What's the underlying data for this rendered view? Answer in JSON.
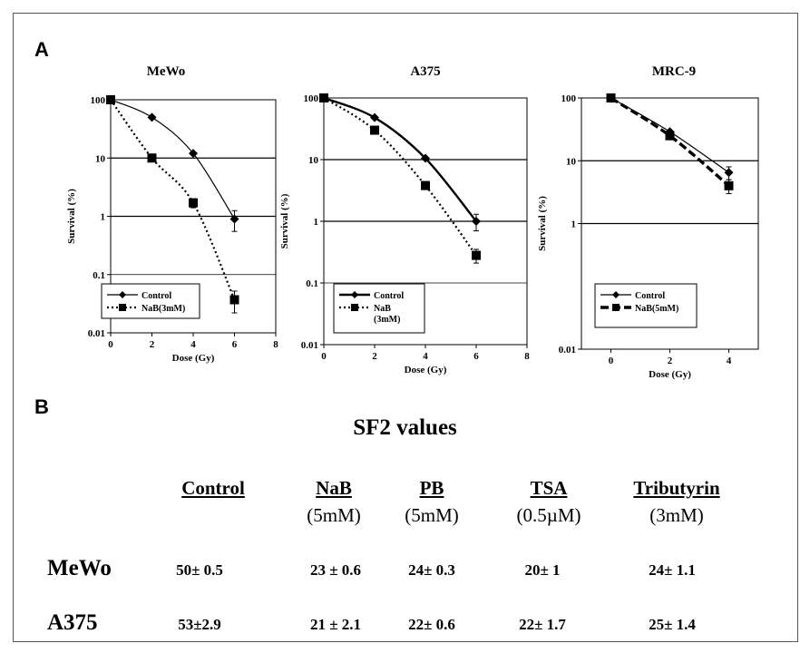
{
  "panel_a_label": "A",
  "panel_b_label": "B",
  "chart_data": [
    {
      "type": "line",
      "title": "MeWo",
      "xlabel": "Dose (Gy)",
      "ylabel": "Survival (%)",
      "xlim": [
        0,
        8
      ],
      "ylim": [
        0.01,
        100
      ],
      "yscale": "log",
      "xticks": [
        "0",
        "2",
        "4",
        "6",
        "8"
      ],
      "yticks": [
        "0.01",
        "0.1",
        "1",
        "10",
        "100"
      ],
      "grid": "horizontal",
      "legend": "bottom-left",
      "series": [
        {
          "name": "Control",
          "style": "solid-thin",
          "marker": "diamond",
          "x": [
            0,
            2,
            4,
            6
          ],
          "y": [
            100,
            50,
            12,
            0.9
          ],
          "err": [
            0,
            0,
            0,
            0.35
          ]
        },
        {
          "name": "NaB(3mM)",
          "style": "dotted",
          "marker": "square",
          "x": [
            0,
            2,
            4,
            6
          ],
          "y": [
            100,
            10,
            1.7,
            0.037
          ],
          "err": [
            0,
            0,
            0.3,
            0.015
          ]
        }
      ]
    },
    {
      "type": "line",
      "title": "A375",
      "xlabel": "Dose (Gy)",
      "ylabel": "Survival (%)",
      "xlim": [
        0,
        8
      ],
      "ylim": [
        0.01,
        100
      ],
      "yscale": "log",
      "xticks": [
        "0",
        "2",
        "4",
        "6",
        "8"
      ],
      "yticks": [
        "0.01",
        "0.1",
        "1",
        "10",
        "100"
      ],
      "grid": "horizontal",
      "legend": "bottom-left",
      "series": [
        {
          "name": "Control",
          "style": "solid-thick",
          "marker": "diamond",
          "x": [
            0,
            2,
            4,
            6
          ],
          "y": [
            100,
            48,
            10.5,
            1.0
          ],
          "err": [
            0,
            0,
            0,
            0.3
          ]
        },
        {
          "name": "NaB\n(3mM)",
          "style": "dotted",
          "marker": "square",
          "x": [
            0,
            2,
            4,
            6
          ],
          "y": [
            100,
            30,
            3.8,
            0.28
          ],
          "err": [
            0,
            0,
            0,
            0.07
          ]
        }
      ]
    },
    {
      "type": "line",
      "title": "MRC-9",
      "xlabel": "Dose (Gy)",
      "ylabel": "Survival (%)",
      "xlim": [
        -1,
        5
      ],
      "ylim": [
        0.01,
        100
      ],
      "yscale": "log",
      "xticks": [
        "0",
        "2",
        "4"
      ],
      "yticks": [
        "0.01",
        "1",
        "10",
        "100"
      ],
      "grid": "horizontal",
      "legend": "bottom-left",
      "series": [
        {
          "name": "Control",
          "style": "solid-thin",
          "marker": "diamond",
          "x": [
            0,
            2,
            4
          ],
          "y": [
            100,
            29,
            6.5
          ],
          "err": [
            0,
            0,
            1.5
          ]
        },
        {
          "name": "NaB(5mM)",
          "style": "dashed-thick",
          "marker": "square",
          "x": [
            0,
            2,
            4
          ],
          "y": [
            100,
            25,
            4.0
          ],
          "err": [
            10,
            0,
            1.0
          ]
        }
      ]
    }
  ],
  "sf2": {
    "title": "SF2 values",
    "columns": [
      {
        "name": "Control",
        "sub": ""
      },
      {
        "name": "NaB",
        "sub": "(5mM)"
      },
      {
        "name": "PB",
        "sub": "(5mM)"
      },
      {
        "name": "TSA",
        "sub": "(0.5µM)"
      },
      {
        "name": "Tributyrin",
        "sub": "(3mM)"
      }
    ],
    "rows": [
      {
        "label": "MeWo",
        "values": [
          "50± 0.5",
          "23 ± 0.6",
          "24± 0.3",
          "20± 1",
          "24± 1.1"
        ]
      },
      {
        "label": "A375",
        "values": [
          "53±2.9",
          "21 ± 2.1",
          "22± 0.6",
          "22± 1.7",
          "25± 1.4"
        ]
      }
    ]
  }
}
